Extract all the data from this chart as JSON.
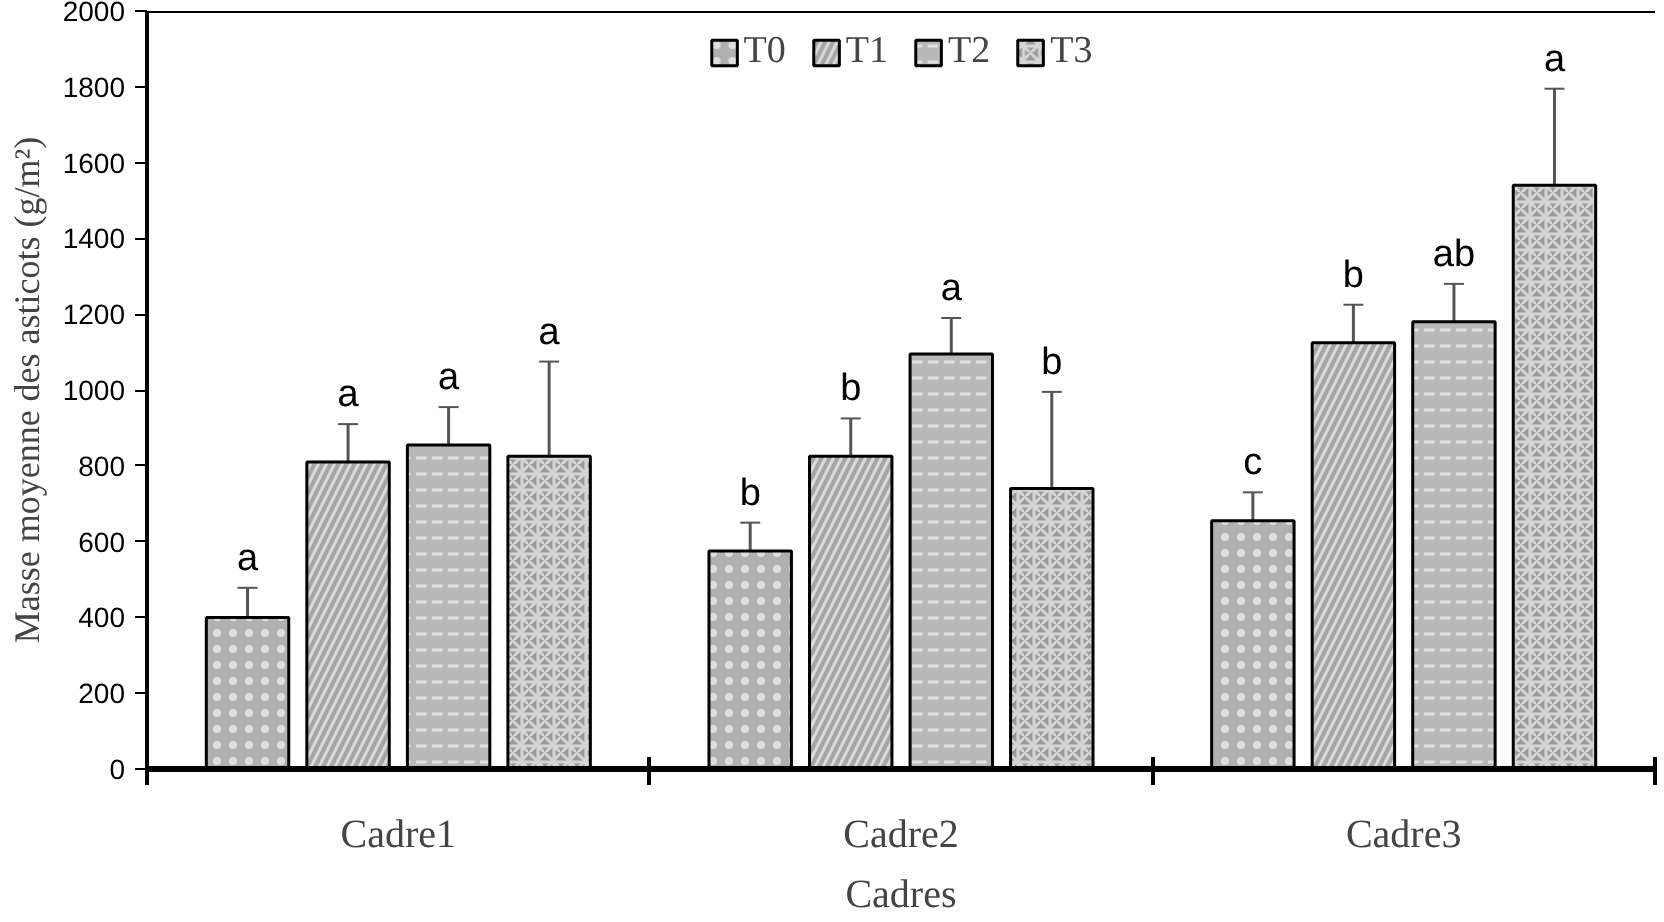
{
  "chart_data": {
    "type": "bar",
    "xlabel": "Cadres",
    "ylabel": "Masse moyenne des asticots (g/m²)",
    "categories": [
      "Cadre1",
      "Cadre2",
      "Cadre3"
    ],
    "series": [
      {
        "name": "T0",
        "color": "#b0b0b0",
        "values": [
          400,
          575,
          655
        ],
        "errors": [
          78,
          75,
          75
        ],
        "value_labels": [
          "a",
          "b",
          "c"
        ]
      },
      {
        "name": "T1",
        "color": "#a6a6a6",
        "values": [
          810,
          825,
          1125
        ],
        "errors": [
          100,
          100,
          100
        ],
        "value_labels": [
          "a",
          "b",
          "b"
        ]
      },
      {
        "name": "T2",
        "color": "#b8b8b8",
        "values": [
          855,
          1095,
          1180
        ],
        "errors": [
          100,
          95,
          100
        ],
        "value_labels": [
          "a",
          "a",
          "ab"
        ]
      },
      {
        "name": "T3",
        "color": "#999999",
        "values": [
          825,
          740,
          1540
        ],
        "errors": [
          250,
          255,
          255
        ],
        "value_labels": [
          "a",
          "b",
          "a"
        ]
      }
    ],
    "ylim": [
      0,
      2000
    ],
    "yticks": [
      0,
      200,
      400,
      600,
      800,
      1000,
      1200,
      1400,
      1600,
      1800,
      2000
    ],
    "grid": false,
    "legend": "top"
  }
}
